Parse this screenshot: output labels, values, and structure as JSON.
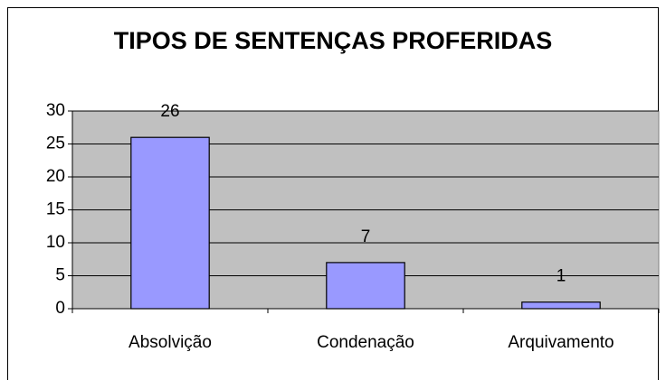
{
  "chart_data": {
    "type": "bar",
    "title": "TIPOS DE SENTENÇAS PROFERIDAS",
    "categories": [
      "Absolvição",
      "Condenação",
      "Arquivamento"
    ],
    "values": [
      26,
      7,
      1
    ],
    "color": "#9999ff",
    "plot_background": "#c0c0c0",
    "ylim": [
      0,
      30
    ],
    "yticks": [
      0,
      5,
      10,
      15,
      20,
      25,
      30
    ],
    "grid": true,
    "data_labels": true
  }
}
